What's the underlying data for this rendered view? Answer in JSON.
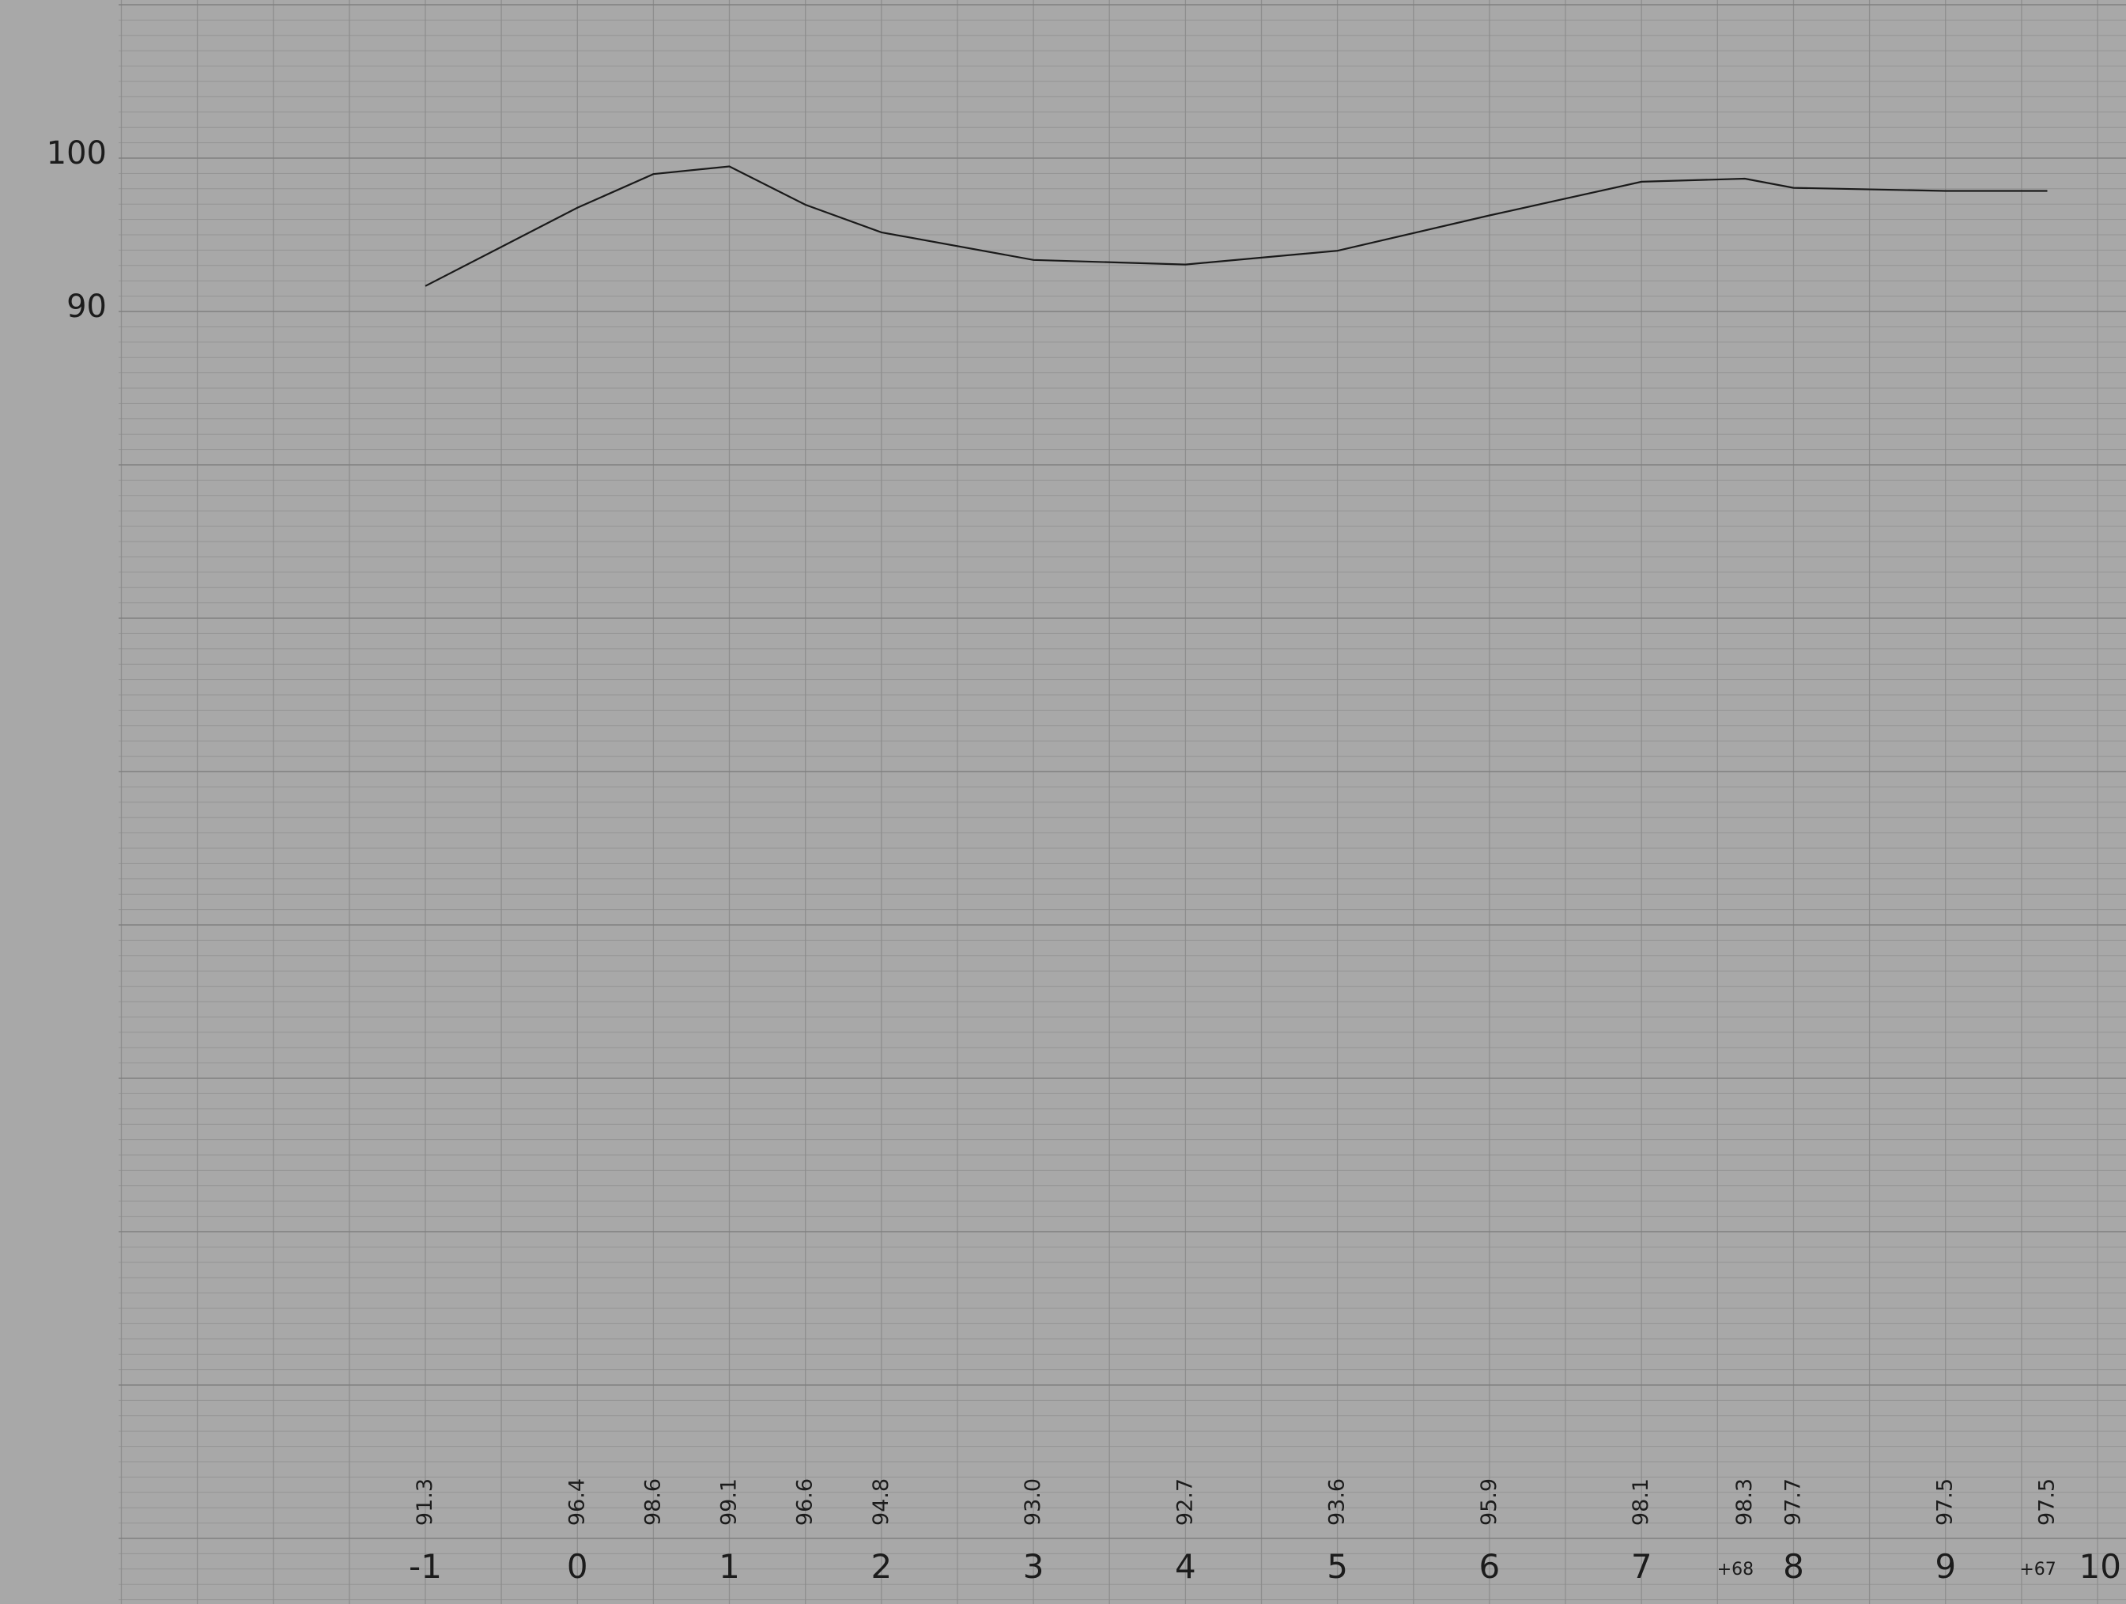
{
  "chart_data": {
    "type": "line",
    "title": "",
    "xlabel": "",
    "ylabel": "",
    "xlim": [
      -1,
      10
    ],
    "ylim": [
      90,
      100
    ],
    "grid": true,
    "y_ticks": [
      {
        "value": 100,
        "label": "100"
      },
      {
        "value": 90,
        "label": "90"
      }
    ],
    "x_ticks": [
      {
        "value": -1,
        "label": "-1"
      },
      {
        "value": 0,
        "label": "0"
      },
      {
        "value": 1,
        "label": "1"
      },
      {
        "value": 2,
        "label": "2"
      },
      {
        "value": 3,
        "label": "3"
      },
      {
        "value": 4,
        "label": "4"
      },
      {
        "value": 5,
        "label": "5"
      },
      {
        "value": 6,
        "label": "6"
      },
      {
        "value": 7,
        "label": "7"
      },
      {
        "value": 8,
        "label": "8"
      },
      {
        "value": 9,
        "label": "9"
      },
      {
        "value": 10,
        "label": "10"
      }
    ],
    "x_sub_labels": [
      {
        "value": 7.68,
        "label": "+68"
      },
      {
        "value": 9.67,
        "label": "+67"
      }
    ],
    "series": [
      {
        "values": [
          {
            "x": -1,
            "y": 91.3,
            "label": "91.3"
          },
          {
            "x": 0,
            "y": 96.4,
            "label": "96.4"
          },
          {
            "x": 0.5,
            "y": 98.6,
            "label": "98.6"
          },
          {
            "x": 1,
            "y": 99.1,
            "label": "99.1"
          },
          {
            "x": 1.5,
            "y": 96.6,
            "label": "96.6"
          },
          {
            "x": 2,
            "y": 94.8,
            "label": "94.8"
          },
          {
            "x": 3,
            "y": 93.0,
            "label": "93.0"
          },
          {
            "x": 4,
            "y": 92.7,
            "label": "92.7"
          },
          {
            "x": 5,
            "y": 93.6,
            "label": "93.6"
          },
          {
            "x": 6,
            "y": 95.9,
            "label": "95.9"
          },
          {
            "x": 7,
            "y": 98.1,
            "label": "98.1"
          },
          {
            "x": 7.68,
            "y": 98.3,
            "label": "98.3"
          },
          {
            "x": 8,
            "y": 97.7,
            "label": "97.7"
          },
          {
            "x": 9,
            "y": 97.5,
            "label": "97.5"
          },
          {
            "x": 9.67,
            "y": 97.5,
            "label": "97.5"
          }
        ]
      }
    ],
    "colors": {
      "paper": "#a8a8a8",
      "line": "#1a1a1a",
      "grid": "#8c8c8c"
    }
  }
}
